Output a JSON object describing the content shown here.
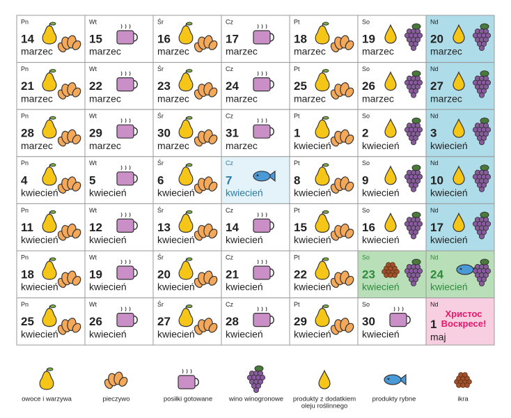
{
  "calendar": {
    "weeks": [
      [
        {
          "dow": "Pn",
          "day": 14,
          "month": "marzec",
          "icons": [
            "fruit",
            "bread"
          ]
        },
        {
          "dow": "Wt",
          "day": 15,
          "month": "marzec",
          "icons": [
            "cup"
          ]
        },
        {
          "dow": "Śr",
          "day": 16,
          "month": "marzec",
          "icons": [
            "fruit",
            "bread"
          ]
        },
        {
          "dow": "Cz",
          "day": 17,
          "month": "marzec",
          "icons": [
            "cup"
          ]
        },
        {
          "dow": "Pt",
          "day": 18,
          "month": "marzec",
          "icons": [
            "fruit",
            "bread"
          ]
        },
        {
          "dow": "So",
          "day": 19,
          "month": "marzec",
          "icons": [
            "oil",
            "grapes"
          ]
        },
        {
          "dow": "Nd",
          "day": 20,
          "month": "marzec",
          "icons": [
            "oil",
            "grapes"
          ],
          "bg": "#aedce9"
        }
      ],
      [
        {
          "dow": "Pn",
          "day": 21,
          "month": "marzec",
          "icons": [
            "fruit",
            "bread"
          ]
        },
        {
          "dow": "Wt",
          "day": 22,
          "month": "marzec",
          "icons": [
            "cup"
          ]
        },
        {
          "dow": "Śr",
          "day": 23,
          "month": "marzec",
          "icons": [
            "fruit",
            "bread"
          ]
        },
        {
          "dow": "Cz",
          "day": 24,
          "month": "marzec",
          "icons": [
            "cup"
          ]
        },
        {
          "dow": "Pt",
          "day": 25,
          "month": "marzec",
          "icons": [
            "fruit",
            "bread"
          ]
        },
        {
          "dow": "So",
          "day": 26,
          "month": "marzec",
          "icons": [
            "oil",
            "grapes"
          ]
        },
        {
          "dow": "Nd",
          "day": 27,
          "month": "marzec",
          "icons": [
            "oil",
            "grapes"
          ],
          "bg": "#aedce9"
        }
      ],
      [
        {
          "dow": "Pn",
          "day": 28,
          "month": "marzec",
          "icons": [
            "fruit",
            "bread"
          ]
        },
        {
          "dow": "Wt",
          "day": 29,
          "month": "marzec",
          "icons": [
            "cup"
          ]
        },
        {
          "dow": "Śr",
          "day": 30,
          "month": "marzec",
          "icons": [
            "fruit",
            "bread"
          ]
        },
        {
          "dow": "Cz",
          "day": 31,
          "month": "marzec",
          "icons": [
            "cup"
          ]
        },
        {
          "dow": "Pt",
          "day": 1,
          "month": "kwiecień",
          "icons": [
            "fruit",
            "bread"
          ]
        },
        {
          "dow": "So",
          "day": 2,
          "month": "kwiecień",
          "icons": [
            "oil",
            "grapes"
          ]
        },
        {
          "dow": "Nd",
          "day": 3,
          "month": "kwiecień",
          "icons": [
            "oil",
            "grapes"
          ],
          "bg": "#aedce9"
        }
      ],
      [
        {
          "dow": "Pn",
          "day": 4,
          "month": "kwiecień",
          "icons": [
            "fruit",
            "bread"
          ]
        },
        {
          "dow": "Wt",
          "day": 5,
          "month": "kwiecień",
          "icons": [
            "cup"
          ]
        },
        {
          "dow": "Śr",
          "day": 6,
          "month": "kwiecień",
          "icons": [
            "fruit",
            "bread"
          ]
        },
        {
          "dow": "Cz",
          "day": 7,
          "month": "kwiecień",
          "icons": [
            "fish"
          ],
          "bg": "#e3f3f9",
          "color": "#2b7ca3"
        },
        {
          "dow": "Pt",
          "day": 8,
          "month": "kwiecień",
          "icons": [
            "fruit",
            "bread"
          ]
        },
        {
          "dow": "So",
          "day": 9,
          "month": "kwiecień",
          "icons": [
            "oil",
            "grapes"
          ]
        },
        {
          "dow": "Nd",
          "day": 10,
          "month": "kwiecień",
          "icons": [
            "oil",
            "grapes"
          ],
          "bg": "#aedce9"
        }
      ],
      [
        {
          "dow": "Pn",
          "day": 11,
          "month": "kwiecień",
          "icons": [
            "fruit",
            "bread"
          ]
        },
        {
          "dow": "Wt",
          "day": 12,
          "month": "kwiecień",
          "icons": [
            "cup"
          ]
        },
        {
          "dow": "Śr",
          "day": 13,
          "month": "kwiecień",
          "icons": [
            "fruit",
            "bread"
          ]
        },
        {
          "dow": "Cz",
          "day": 14,
          "month": "kwiecień",
          "icons": [
            "cup"
          ]
        },
        {
          "dow": "Pt",
          "day": 15,
          "month": "kwiecień",
          "icons": [
            "fruit",
            "bread"
          ]
        },
        {
          "dow": "So",
          "day": 16,
          "month": "kwiecień",
          "icons": [
            "oil",
            "grapes"
          ]
        },
        {
          "dow": "Nd",
          "day": 17,
          "month": "kwiecień",
          "icons": [
            "oil",
            "grapes"
          ],
          "bg": "#aedce9"
        }
      ],
      [
        {
          "dow": "Pn",
          "day": 18,
          "month": "kwiecień",
          "icons": [
            "fruit",
            "bread"
          ]
        },
        {
          "dow": "Wt",
          "day": 19,
          "month": "kwiecień",
          "icons": [
            "cup"
          ]
        },
        {
          "dow": "Śr",
          "day": 20,
          "month": "kwiecień",
          "icons": [
            "fruit",
            "bread"
          ]
        },
        {
          "dow": "Cz",
          "day": 21,
          "month": "kwiecień",
          "icons": [
            "cup"
          ]
        },
        {
          "dow": "Pt",
          "day": 22,
          "month": "kwiecień",
          "icons": [
            "fruit",
            "bread"
          ]
        },
        {
          "dow": "So",
          "day": 23,
          "month": "kwiecień",
          "icons": [
            "caviar",
            "grapes"
          ],
          "bg": "#b9dfb8",
          "color": "#2e8b3e"
        },
        {
          "dow": "Nd",
          "day": 24,
          "month": "kwiecień",
          "icons": [
            "fish",
            "grapes"
          ],
          "bg": "#b9dfb8",
          "color": "#2e8b3e"
        }
      ],
      [
        {
          "dow": "Pn",
          "day": 25,
          "month": "kwiecień",
          "icons": [
            "fruit",
            "bread"
          ]
        },
        {
          "dow": "Wt",
          "day": 26,
          "month": "kwiecień",
          "icons": [
            "cup"
          ]
        },
        {
          "dow": "Śr",
          "day": 27,
          "month": "kwiecień",
          "icons": [
            "fruit",
            "bread"
          ]
        },
        {
          "dow": "Cz",
          "day": 28,
          "month": "kwiecień",
          "icons": [
            "cup"
          ]
        },
        {
          "dow": "Pt",
          "day": 29,
          "month": "kwiecień",
          "icons": [
            "fruit",
            "bread"
          ]
        },
        {
          "dow": "So",
          "day": 30,
          "month": "kwiecień",
          "icons": [
            "cup"
          ]
        },
        {
          "dow": "Nd",
          "day": 1,
          "month": "maj",
          "icons": [],
          "bg": "#f7cfe0",
          "note": [
            "Христос",
            "Воскресе!"
          ],
          "note_color": "#e6176a"
        }
      ]
    ]
  },
  "legend": [
    {
      "icon": "fruit",
      "label": [
        "owoce i warzywa"
      ]
    },
    {
      "icon": "bread",
      "label": [
        "pieczywo"
      ]
    },
    {
      "icon": "cup",
      "label": [
        "posiłki gotowane"
      ]
    },
    {
      "icon": "grapes",
      "label": [
        "wino winogronowe"
      ]
    },
    {
      "icon": "oil",
      "label": [
        "produkty z dodatkiem",
        "oleju roślinnego"
      ]
    },
    {
      "icon": "fish",
      "label": [
        "produkty rybne"
      ]
    },
    {
      "icon": "caviar",
      "label": [
        "ikra"
      ]
    }
  ]
}
